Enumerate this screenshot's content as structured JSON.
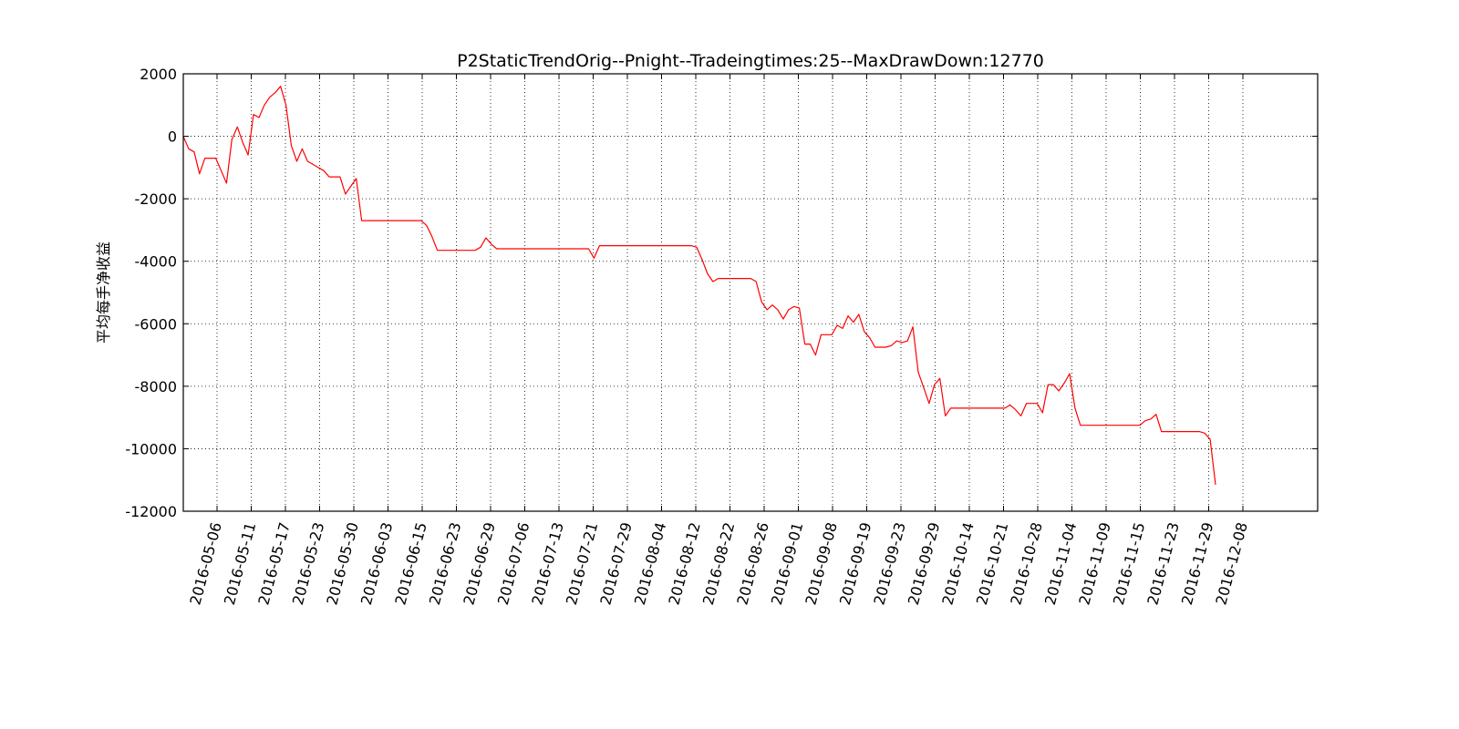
{
  "chart_data": {
    "type": "line",
    "title": "P2StaticTrendOrig--Pnight--Tradeingtimes:25--MaxDrawDown:12770",
    "xlabel": "",
    "ylabel": "平均每手净收益",
    "ylim": [
      -12000,
      2000
    ],
    "yticks": [
      2000,
      0,
      -2000,
      -4000,
      -6000,
      -8000,
      -10000,
      -12000
    ],
    "xtick_labels": [
      "2016-05-06",
      "2016-05-11",
      "2016-05-17",
      "2016-05-23",
      "2016-05-30",
      "2016-06-03",
      "2016-06-15",
      "2016-06-23",
      "2016-06-29",
      "2016-07-06",
      "2016-07-13",
      "2016-07-21",
      "2016-07-29",
      "2016-08-04",
      "2016-08-12",
      "2016-08-22",
      "2016-08-26",
      "2016-09-01",
      "2016-09-08",
      "2016-09-19",
      "2016-09-23",
      "2016-09-29",
      "2016-10-14",
      "2016-10-21",
      "2016-10-28",
      "2016-11-04",
      "2016-11-09",
      "2016-11-15",
      "2016-11-23",
      "2016-11-29",
      "2016-12-08"
    ],
    "grid": true,
    "line_color": "#ff0000",
    "series": [
      {
        "values": [
          0,
          -400,
          -500,
          -1200,
          -700,
          -700,
          -700,
          -1100,
          -1500,
          -100,
          300,
          -200,
          -600,
          700,
          600,
          1000,
          1250,
          1400,
          1600,
          1000,
          -300,
          -800,
          -400,
          -800,
          -900,
          -1000,
          -1100,
          -1300,
          -1300,
          -1300,
          -1850,
          -1600,
          -1350,
          -2700,
          -2700,
          -2700,
          -2700,
          -2700,
          -2700,
          -2700,
          -2700,
          -2700,
          -2700,
          -2700,
          -2700,
          -2850,
          -3200,
          -3650,
          -3650,
          -3650,
          -3650,
          -3650,
          -3650,
          -3650,
          -3650,
          -3550,
          -3250,
          -3450,
          -3600,
          -3600,
          -3600,
          -3600,
          -3600,
          -3600,
          -3600,
          -3600,
          -3600,
          -3600,
          -3600,
          -3600,
          -3600,
          -3600,
          -3600,
          -3600,
          -3600,
          -3600,
          -3900,
          -3500,
          -3500,
          -3500,
          -3500,
          -3500,
          -3500,
          -3500,
          -3500,
          -3500,
          -3500,
          -3500,
          -3500,
          -3500,
          -3500,
          -3500,
          -3500,
          -3500,
          -3500,
          -3550,
          -3950,
          -4400,
          -4650,
          -4550,
          -4550,
          -4550,
          -4550,
          -4550,
          -4550,
          -4550,
          -4650,
          -5300,
          -5550,
          -5400,
          -5550,
          -5850,
          -5550,
          -5450,
          -5500,
          -6650,
          -6650,
          -7000,
          -6350,
          -6350,
          -6350,
          -6050,
          -6150,
          -5750,
          -5950,
          -5700,
          -6250,
          -6450,
          -6750,
          -6750,
          -6750,
          -6700,
          -6550,
          -6600,
          -6550,
          -6100,
          -7550,
          -8050,
          -8550,
          -7950,
          -7750,
          -8950,
          -8700,
          -8700,
          -8700,
          -8700,
          -8700,
          -8700,
          -8700,
          -8700,
          -8700,
          -8700,
          -8700,
          -8600,
          -8750,
          -8950,
          -8550,
          -8550,
          -8550,
          -8850,
          -7950,
          -7950,
          -8150,
          -7900,
          -7600,
          -8700,
          -9250,
          -9250,
          -9250,
          -9250,
          -9250,
          -9250,
          -9250,
          -9250,
          -9250,
          -9250,
          -9250,
          -9250,
          -9100,
          -9050,
          -8900,
          -9450,
          -9450,
          -9450,
          -9450,
          -9450,
          -9450,
          -9450,
          -9450,
          -9500,
          -9700,
          -11150
        ]
      }
    ]
  }
}
